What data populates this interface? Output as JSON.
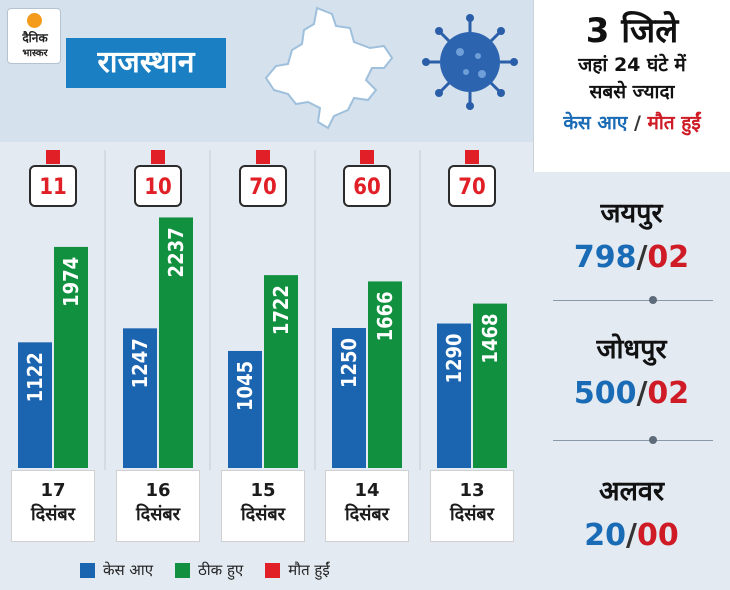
{
  "brand": {
    "line1": "दैनिक",
    "line2": "भास्कर",
    "sun_color": "#f59b1b"
  },
  "title": "राजस्थान",
  "colors": {
    "cases": "#1a64b0",
    "recovered": "#11913f",
    "deaths": "#e01f26",
    "banner": "#1a7fc3"
  },
  "legend": {
    "cases": "केस आए",
    "recovered": "ठीक हुए",
    "deaths": "मौत हुईं"
  },
  "chart_data": {
    "type": "bar",
    "categories": [
      "17 दिसंबर",
      "16 दिसंबर",
      "15 दिसंबर",
      "14 दिसंबर",
      "13 दिसंबर"
    ],
    "dates": [
      {
        "day": "17",
        "month": "दिसंबर"
      },
      {
        "day": "16",
        "month": "दिसंबर"
      },
      {
        "day": "15",
        "month": "दिसंबर"
      },
      {
        "day": "14",
        "month": "दिसंबर"
      },
      {
        "day": "13",
        "month": "दिसंबर"
      }
    ],
    "series": [
      {
        "name": "केस आए",
        "values": [
          1122,
          1247,
          1045,
          1250,
          1290
        ]
      },
      {
        "name": "ठीक हुए",
        "values": [
          1974,
          2237,
          1722,
          1666,
          1468
        ]
      },
      {
        "name": "मौत हुईं",
        "values": [
          11,
          10,
          70,
          60,
          70
        ]
      }
    ]
  },
  "right_panel": {
    "count": "3 जिले",
    "sub1": "जहां 24 घंटे में",
    "sub2": "सबसे ज्यादा",
    "legend_cases": "केस आए",
    "legend_slash": " / ",
    "legend_deaths": "मौत हुईं",
    "cities": [
      {
        "name": "जयपुर",
        "cases": "798",
        "deaths": "02"
      },
      {
        "name": "जोधपुर",
        "cases": "500",
        "deaths": "02"
      },
      {
        "name": "अलवर",
        "cases": "20",
        "deaths": "00"
      }
    ]
  }
}
